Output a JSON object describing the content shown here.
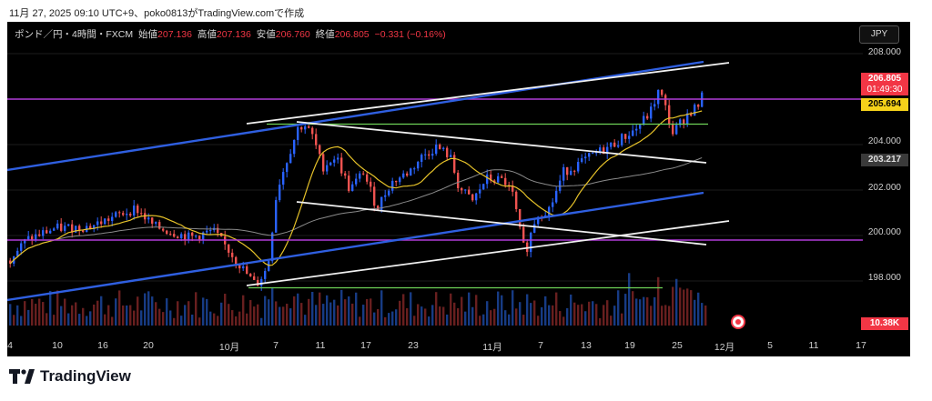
{
  "caption": "11月 27, 2025 09:10 UTC+9、poko0813がTradingView.comで作成",
  "symbol": "ポンド／円・4時間・FXCM",
  "ohlc": {
    "open_label": "始値",
    "open": "207.136",
    "high_label": "高値",
    "high": "207.136",
    "low_label": "安値",
    "low": "206.760",
    "close_label": "終値",
    "close": "206.805",
    "change": "−0.331 (−0.16%)"
  },
  "currency_button": "JPY",
  "price_axis": [
    "208.000",
    "204.000",
    "202.000",
    "200.000",
    "198.000"
  ],
  "badges": {
    "last_price": "206.805",
    "countdown": "01:49:30",
    "ma_fast": "205.694",
    "ma_slow": "203.217",
    "volume": "10.38K"
  },
  "date_axis": [
    "4",
    "10",
    "16",
    "20",
    "10月",
    "7",
    "11",
    "17",
    "23",
    "11月",
    "7",
    "13",
    "19",
    "25",
    "12月",
    "5",
    "11",
    "17"
  ],
  "brand": "TradingView",
  "colors": {
    "background": "#000000",
    "up_candle": "#2962ff",
    "down_candle": "#ef5350",
    "channel_blue": "#2f5fe0",
    "trendline_white": "#f0f0f0",
    "horizontal_green": "#6ed357",
    "horizontal_magenta": "#b03cd8",
    "ma_fast": "#e6c229",
    "ma_slow": "#8a8a8a"
  },
  "chart_data": {
    "type": "candlestick",
    "y_range": [
      196.9,
      209.0
    ],
    "visible_price_levels": [
      208.0,
      204.0,
      202.0,
      200.0,
      198.0
    ],
    "last_close": 206.805,
    "ma_fast_value": 205.694,
    "ma_slow_value": 203.217,
    "volume_last": "10.38K",
    "horizontal_levels": {
      "magenta": [
        206.0,
        199.8
      ],
      "green": [
        204.9,
        197.7
      ]
    },
    "path_points": [
      [
        0,
        198.9
      ],
      [
        20,
        199.8
      ],
      [
        50,
        200.3
      ],
      [
        90,
        200.4
      ],
      [
        115,
        200.8
      ],
      [
        140,
        201.2
      ],
      [
        160,
        200.4
      ],
      [
        200,
        199.9
      ],
      [
        225,
        200.2
      ],
      [
        245,
        199.2
      ],
      [
        260,
        198.4
      ],
      [
        272,
        197.8
      ],
      [
        285,
        198.6
      ],
      [
        295,
        202.0
      ],
      [
        305,
        203.2
      ],
      [
        318,
        204.7
      ],
      [
        325,
        204.9
      ],
      [
        335,
        204.3
      ],
      [
        345,
        203.0
      ],
      [
        360,
        203.5
      ],
      [
        375,
        202.0
      ],
      [
        390,
        202.8
      ],
      [
        405,
        201.2
      ],
      [
        420,
        202.3
      ],
      [
        440,
        202.8
      ],
      [
        455,
        203.5
      ],
      [
        470,
        203.9
      ],
      [
        485,
        203.5
      ],
      [
        495,
        202.1
      ],
      [
        510,
        201.5
      ],
      [
        525,
        202.5
      ],
      [
        545,
        202.4
      ],
      [
        555,
        201.7
      ],
      [
        565,
        199.5
      ],
      [
        570,
        199.5
      ],
      [
        580,
        200.9
      ],
      [
        595,
        201.2
      ],
      [
        610,
        202.8
      ],
      [
        625,
        203.1
      ],
      [
        645,
        203.6
      ],
      [
        660,
        203.9
      ],
      [
        675,
        204.3
      ],
      [
        690,
        204.7
      ],
      [
        705,
        205.4
      ],
      [
        715,
        206.4
      ],
      [
        722,
        205.6
      ],
      [
        730,
        204.5
      ],
      [
        745,
        205.3
      ],
      [
        760,
        205.8
      ],
      [
        770,
        207.2
      ],
      [
        775,
        206.8
      ]
    ]
  }
}
